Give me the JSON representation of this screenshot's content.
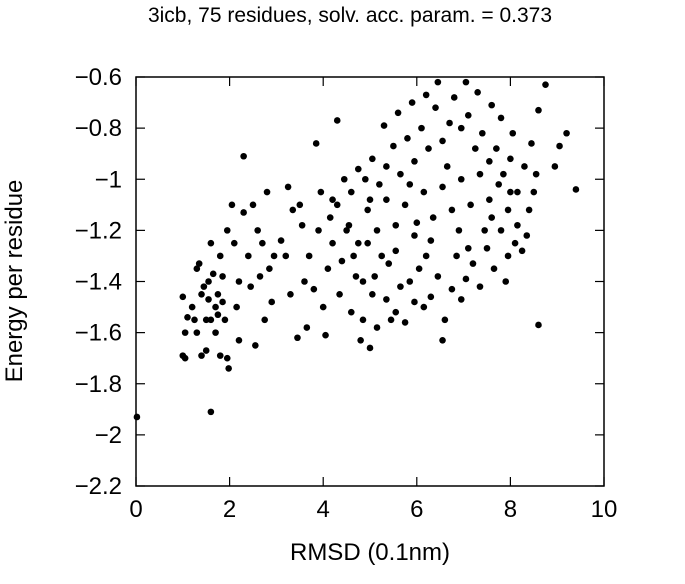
{
  "chart_data": {
    "type": "scatter",
    "title": "3icb, 75 residues, solv. acc. param. = 0.373",
    "xlabel": "RMSD (0.1nm)",
    "ylabel": "Energy per residue",
    "xlim": [
      0,
      10
    ],
    "ylim": [
      -2.2,
      -0.6
    ],
    "xticks": [
      0,
      2,
      4,
      6,
      8,
      10
    ],
    "xtick_labels": [
      "0",
      "2",
      "4",
      "6",
      "8",
      "10"
    ],
    "yticks": [
      -2.2,
      -2,
      -1.8,
      -1.6,
      -1.4,
      -1.2,
      -1,
      -0.8,
      -0.6
    ],
    "ytick_labels": [
      "−2.2",
      "−2",
      "−1.8",
      "−1.6",
      "−1.4",
      "−1.2",
      "−1",
      "−0.8",
      "−0.6"
    ],
    "grid": false,
    "legend": "none",
    "marker_color": "#000000",
    "points": [
      [
        0.02,
        -1.93
      ],
      [
        1.6,
        -1.91
      ],
      [
        2.3,
        -0.91
      ],
      [
        8.6,
        -1.57
      ],
      [
        6.55,
        -1.63
      ],
      [
        9.4,
        -1.04
      ],
      [
        9.2,
        -0.82
      ],
      [
        9.05,
        -0.87
      ],
      [
        8.75,
        -0.63
      ],
      [
        8.6,
        -0.73
      ],
      [
        8.95,
        -0.95
      ],
      [
        5.0,
        -1.66
      ],
      [
        4.8,
        -1.63
      ],
      [
        4.3,
        -0.77
      ],
      [
        3.85,
        -0.86
      ],
      [
        3.25,
        -1.03
      ],
      [
        3.45,
        -1.62
      ],
      [
        3.65,
        -1.58
      ],
      [
        4.05,
        -1.61
      ],
      [
        2.85,
        -1.35
      ],
      [
        2.75,
        -1.55
      ],
      [
        2.9,
        -1.48
      ],
      [
        2.45,
        -1.42
      ],
      [
        2.55,
        -1.65
      ],
      [
        2.2,
        -1.63
      ],
      [
        1.98,
        -1.74
      ],
      [
        1.95,
        -1.7
      ],
      [
        1.8,
        -1.69
      ],
      [
        1.5,
        -1.67
      ],
      [
        1.4,
        -1.69
      ],
      [
        1.0,
        -1.69
      ],
      [
        1.05,
        -1.7
      ],
      [
        1.3,
        -1.6
      ],
      [
        1.05,
        -1.6
      ],
      [
        1.0,
        -1.46
      ],
      [
        1.1,
        -1.54
      ],
      [
        1.25,
        -1.55
      ],
      [
        1.35,
        -1.33
      ],
      [
        1.4,
        -1.45
      ],
      [
        1.45,
        -1.42
      ],
      [
        1.55,
        -1.4
      ],
      [
        1.6,
        -1.25
      ],
      [
        1.65,
        -1.37
      ],
      [
        1.5,
        -1.55
      ],
      [
        1.7,
        -1.5
      ],
      [
        1.75,
        -1.45
      ],
      [
        1.8,
        -1.3
      ],
      [
        1.85,
        -1.48
      ],
      [
        1.6,
        -1.55
      ],
      [
        1.7,
        -1.6
      ],
      [
        1.9,
        -1.55
      ],
      [
        1.75,
        -1.53
      ],
      [
        1.95,
        -1.2
      ],
      [
        2.05,
        -1.1
      ],
      [
        2.1,
        -1.25
      ],
      [
        2.2,
        -1.4
      ],
      [
        2.3,
        -1.13
      ],
      [
        2.4,
        -1.3
      ],
      [
        2.5,
        -1.1
      ],
      [
        2.6,
        -1.2
      ],
      [
        2.7,
        -1.25
      ],
      [
        2.8,
        -1.05
      ],
      [
        2.95,
        -1.3
      ],
      [
        3.1,
        -1.24
      ],
      [
        3.2,
        -1.3
      ],
      [
        3.35,
        -1.12
      ],
      [
        3.5,
        -1.1
      ],
      [
        3.6,
        -1.4
      ],
      [
        3.7,
        -1.3
      ],
      [
        3.8,
        -1.43
      ],
      [
        3.9,
        -1.2
      ],
      [
        4.0,
        -1.5
      ],
      [
        4.1,
        -1.35
      ],
      [
        4.2,
        -1.08
      ],
      [
        4.35,
        -1.45
      ],
      [
        4.5,
        -1.2
      ],
      [
        4.6,
        -1.52
      ],
      [
        4.7,
        -1.38
      ],
      [
        4.85,
        -1.55
      ],
      [
        4.95,
        -1.25
      ],
      [
        5.05,
        -1.45
      ],
      [
        5.15,
        -1.58
      ],
      [
        5.25,
        -1.3
      ],
      [
        5.35,
        -1.47
      ],
      [
        5.45,
        -1.55
      ],
      [
        5.55,
        -1.52
      ],
      [
        5.65,
        -1.42
      ],
      [
        5.75,
        -1.56
      ],
      [
        5.85,
        -1.4
      ],
      [
        5.95,
        -1.48
      ],
      [
        6.05,
        -1.35
      ],
      [
        6.15,
        -1.5
      ],
      [
        6.3,
        -1.46
      ],
      [
        6.45,
        -1.38
      ],
      [
        6.6,
        -1.55
      ],
      [
        6.75,
        -1.43
      ],
      [
        6.85,
        -1.3
      ],
      [
        6.95,
        -1.47
      ],
      [
        7.05,
        -1.39
      ],
      [
        7.2,
        -1.33
      ],
      [
        7.35,
        -1.42
      ],
      [
        7.5,
        -1.27
      ],
      [
        7.65,
        -1.35
      ],
      [
        7.8,
        -1.2
      ],
      [
        7.95,
        -1.3
      ],
      [
        8.1,
        -1.25
      ],
      [
        8.25,
        -1.28
      ],
      [
        8.4,
        -1.12
      ],
      [
        8.5,
        -1.05
      ],
      [
        8.3,
        -0.95
      ],
      [
        8.15,
        -1.05
      ],
      [
        8.0,
        -0.92
      ],
      [
        7.85,
        -0.98
      ],
      [
        7.7,
        -0.88
      ],
      [
        7.55,
        -0.93
      ],
      [
        7.4,
        -0.82
      ],
      [
        7.25,
        -0.88
      ],
      [
        7.1,
        -0.75
      ],
      [
        6.95,
        -0.8
      ],
      [
        6.8,
        -0.68
      ],
      [
        6.7,
        -0.78
      ],
      [
        6.55,
        -0.85
      ],
      [
        6.4,
        -0.72
      ],
      [
        6.25,
        -0.88
      ],
      [
        6.1,
        -0.8
      ],
      [
        5.95,
        -0.93
      ],
      [
        5.8,
        -0.84
      ],
      [
        5.65,
        -0.98
      ],
      [
        5.5,
        -0.87
      ],
      [
        5.35,
        -0.95
      ],
      [
        5.2,
        -1.02
      ],
      [
        5.05,
        -0.92
      ],
      [
        4.9,
        -1.0
      ],
      [
        4.75,
        -0.96
      ],
      [
        4.6,
        -1.05
      ],
      [
        4.45,
        -1.0
      ],
      [
        4.3,
        -1.1
      ],
      [
        4.15,
        -1.15
      ],
      [
        4.55,
        -1.18
      ],
      [
        4.75,
        -1.25
      ],
      [
        4.95,
        -1.12
      ],
      [
        5.15,
        -1.2
      ],
      [
        5.35,
        -1.08
      ],
      [
        5.55,
        -1.18
      ],
      [
        5.75,
        -1.1
      ],
      [
        5.95,
        -1.22
      ],
      [
        6.15,
        -1.05
      ],
      [
        6.35,
        -1.15
      ],
      [
        6.55,
        -1.03
      ],
      [
        6.75,
        -1.12
      ],
      [
        6.95,
        -1.0
      ],
      [
        7.15,
        -1.1
      ],
      [
        7.35,
        -0.98
      ],
      [
        7.55,
        -1.08
      ],
      [
        7.75,
        -1.02
      ],
      [
        7.95,
        -1.12
      ],
      [
        8.15,
        -1.18
      ],
      [
        8.35,
        -1.22
      ],
      [
        7.05,
        -0.62
      ],
      [
        7.3,
        -0.66
      ],
      [
        6.45,
        -0.62
      ],
      [
        7.6,
        -0.71
      ],
      [
        7.8,
        -0.76
      ],
      [
        6.2,
        -0.67
      ],
      [
        5.9,
        -0.7
      ],
      [
        5.6,
        -0.74
      ],
      [
        5.3,
        -0.79
      ],
      [
        8.05,
        -0.82
      ],
      [
        8.45,
        -0.86
      ],
      [
        8.55,
        -0.98
      ],
      [
        7.9,
        -1.4
      ],
      [
        7.1,
        -1.27
      ],
      [
        6.2,
        -1.3
      ],
      [
        5.4,
        -1.33
      ],
      [
        4.65,
        -1.3
      ],
      [
        4.2,
        -1.25
      ],
      [
        3.95,
        -1.05
      ],
      [
        5.1,
        -1.38
      ],
      [
        6.0,
        -1.17
      ],
      [
        6.9,
        -1.2
      ],
      [
        7.6,
        -1.15
      ],
      [
        8.0,
        -1.05
      ],
      [
        6.65,
        -0.95
      ],
      [
        5.85,
        -1.02
      ],
      [
        5.0,
        -1.08
      ],
      [
        4.4,
        -1.32
      ],
      [
        3.55,
        -1.18
      ],
      [
        3.3,
        -1.45
      ],
      [
        2.65,
        -1.38
      ],
      [
        2.15,
        -1.5
      ],
      [
        1.85,
        -1.38
      ],
      [
        1.55,
        -1.47
      ],
      [
        1.3,
        -1.35
      ],
      [
        1.2,
        -1.5
      ],
      [
        6.3,
        -1.24
      ],
      [
        7.45,
        -1.2
      ],
      [
        5.55,
        -1.28
      ],
      [
        4.85,
        -1.4
      ]
    ]
  }
}
